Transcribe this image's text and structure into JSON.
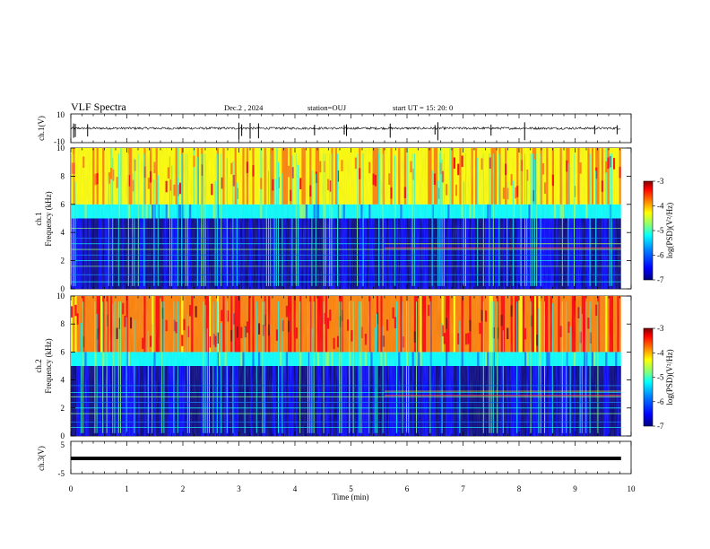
{
  "header": {
    "title": "VLF Spectra",
    "date": "Dec.2 , 2024",
    "station": "station=OUJ",
    "start": "start  UT =   15: 20: 0"
  },
  "panels": {
    "ch1_wave": {
      "ylabel": "ch.1(V)",
      "yticks": [
        "10",
        "-10"
      ]
    },
    "ch1_spec": {
      "ylabel_top": "ch.1",
      "ylabel": "Frequency (kHz)",
      "yticks": [
        "0",
        "2",
        "4",
        "6",
        "8",
        "10"
      ]
    },
    "ch2_spec": {
      "ylabel_top": "ch.2",
      "ylabel": "Frequency (kHz)",
      "yticks": [
        "0",
        "2",
        "4",
        "6",
        "8",
        "10"
      ]
    },
    "ch3_wave": {
      "ylabel": "ch.3(V)",
      "yticks": [
        "5",
        "-5"
      ]
    }
  },
  "xaxis": {
    "label": "Time (min)",
    "ticks": [
      "0",
      "1",
      "2",
      "3",
      "4",
      "5",
      "6",
      "7",
      "8",
      "9",
      "10"
    ]
  },
  "colorbar": {
    "label": "log(PSD)(V²/Hz)",
    "ticks": [
      "-3",
      "-4",
      "-5",
      "-6",
      "-7"
    ]
  },
  "chart_data": [
    {
      "type": "line",
      "name": "ch.1 waveform",
      "ylabel": "ch.1(V)",
      "xlabel": "Time (min)",
      "xlim": [
        0,
        10
      ],
      "ylim": [
        -10,
        10
      ],
      "data_end_min": 9.82,
      "baseline": 0,
      "spikes_x": [
        0.05,
        0.08,
        0.3,
        3.0,
        3.05,
        3.2,
        3.35,
        4.35,
        4.88,
        4.92,
        5.7,
        6.5,
        6.55,
        7.5,
        8.1,
        9.35,
        9.75
      ]
    },
    {
      "type": "heatmap",
      "name": "ch.1 spectrogram",
      "ylabel": "Frequency (kHz)",
      "xlim": [
        0,
        10
      ],
      "ylim": [
        0,
        10
      ],
      "zlim": [
        -7,
        -3
      ],
      "zlabel": "log(PSD)(V²/Hz)",
      "bands_khz": [
        0.5,
        1.0,
        1.6,
        2.0,
        2.4,
        2.8,
        3.2,
        3.6,
        4.3
      ]
    },
    {
      "type": "heatmap",
      "name": "ch.2 spectrogram",
      "ylabel": "Frequency (kHz)",
      "xlim": [
        0,
        10
      ],
      "ylim": [
        0,
        10
      ],
      "zlim": [
        -7,
        -3
      ],
      "zlabel": "log(PSD)(V²/Hz)",
      "bands_khz": [
        0.6,
        1.0,
        1.6,
        2.0,
        2.4,
        2.8,
        3.1,
        3.6
      ]
    },
    {
      "type": "line",
      "name": "ch.3 waveform",
      "ylabel": "ch.3(V)",
      "xlabel": "Time (min)",
      "xlim": [
        0,
        10
      ],
      "ylim": [
        -5,
        5
      ],
      "data_end_min": 9.82,
      "constant_value": -0.3
    }
  ],
  "colors": {
    "jet": [
      "#00007f",
      "#0000ff",
      "#007fff",
      "#00ffff",
      "#7fff7f",
      "#ffff00",
      "#ff7f00",
      "#ff0000",
      "#7f0000"
    ]
  }
}
